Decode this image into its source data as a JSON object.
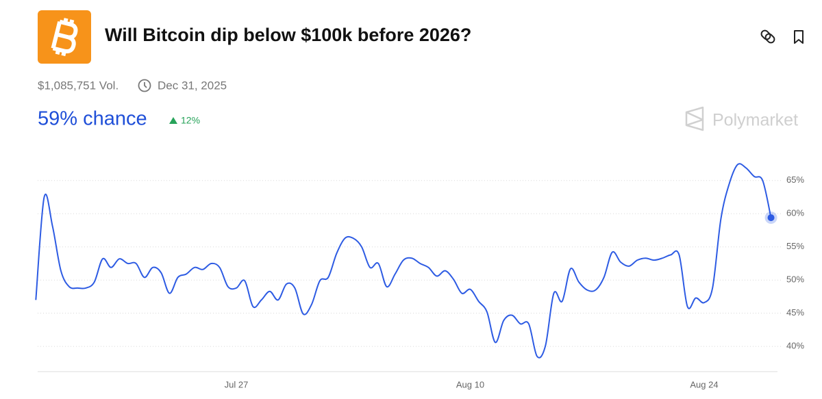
{
  "header": {
    "title": "Will Bitcoin dip below $100k before 2026?",
    "volume": "$1,085,751 Vol.",
    "end_date": "Dec 31, 2025",
    "chance": "59% chance",
    "change": "12%",
    "brand": "Polymarket"
  },
  "chart_data": {
    "type": "line",
    "color": "#2d5be3",
    "categories": [
      null,
      null,
      null,
      null,
      null,
      null,
      null,
      null,
      null,
      null,
      null,
      null,
      null,
      null,
      null,
      null,
      null,
      null,
      null,
      null,
      null,
      null,
      null,
      null,
      "Jul 27",
      null,
      null,
      null,
      null,
      null,
      null,
      null,
      null,
      null,
      null,
      null,
      null,
      null,
      null,
      null,
      null,
      null,
      null,
      null,
      null,
      null,
      null,
      null,
      null,
      null,
      null,
      null,
      "Aug 10",
      null,
      null,
      null,
      null,
      null,
      null,
      null,
      null,
      null,
      null,
      null,
      null,
      null,
      null,
      null,
      null,
      null,
      null,
      null,
      null,
      null,
      null,
      null,
      null,
      null,
      null,
      null,
      "Aug 24",
      null,
      null,
      null,
      null,
      null,
      null,
      null,
      null
    ],
    "values": [
      47.0,
      62.5,
      58.1,
      51.4,
      49.0,
      48.8,
      48.8,
      49.7,
      53.2,
      51.9,
      53.2,
      52.5,
      52.5,
      50.4,
      51.9,
      51.1,
      48.0,
      50.4,
      50.9,
      51.9,
      51.6,
      52.5,
      51.9,
      49.0,
      48.8,
      49.9,
      46.0,
      47.0,
      48.3,
      47.0,
      49.4,
      48.8,
      44.9,
      46.3,
      49.9,
      50.4,
      54.0,
      56.3,
      56.3,
      55.0,
      51.9,
      52.5,
      49.0,
      50.9,
      53.0,
      53.3,
      52.5,
      51.9,
      50.6,
      51.4,
      50.1,
      48.0,
      48.6,
      46.8,
      45.2,
      40.6,
      43.9,
      44.7,
      43.4,
      43.4,
      38.5,
      40.1,
      48.0,
      46.8,
      51.7,
      49.7,
      48.5,
      48.5,
      50.4,
      54.2,
      52.7,
      52.1,
      53.0,
      53.3,
      53.0,
      53.3,
      53.8,
      53.8,
      46.0,
      47.3,
      46.6,
      48.8,
      59.2,
      64.5,
      67.4,
      66.9,
      65.6,
      65.0,
      59.4
    ],
    "ylim": [
      36.2,
      69
    ],
    "yticks": [
      {
        "value": 40,
        "label": "40%"
      },
      {
        "value": 45,
        "label": "45%"
      },
      {
        "value": 50,
        "label": "50%"
      },
      {
        "value": 55,
        "label": "55%"
      },
      {
        "value": 60,
        "label": "60%"
      },
      {
        "value": 65,
        "label": "65%"
      }
    ],
    "grid": true
  }
}
